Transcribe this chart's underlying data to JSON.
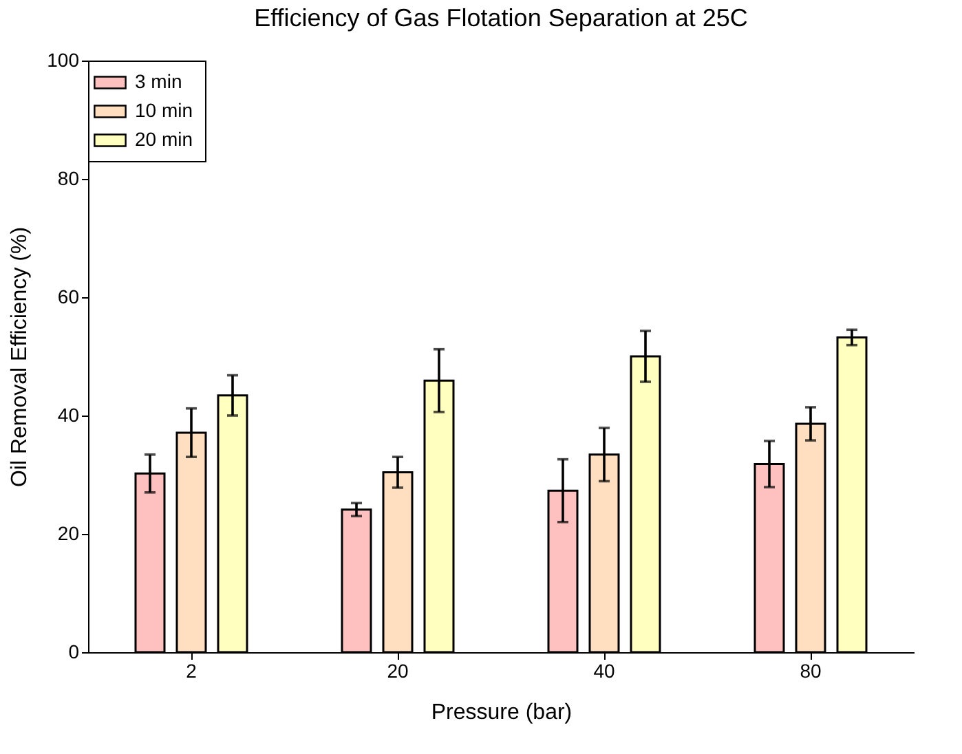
{
  "chart_data": {
    "type": "bar",
    "title": "Efficiency of Gas Flotation Separation at 25C",
    "xlabel": "Pressure (bar)",
    "ylabel": "Oil Removal Efficiency (%)",
    "categories": [
      "2",
      "20",
      "40",
      "80"
    ],
    "series": [
      {
        "name": "3 min",
        "color": "#ffc0c0",
        "values": [
          30.2,
          24.1,
          27.3,
          31.8
        ],
        "errors": [
          3.2,
          1.1,
          5.3,
          3.9
        ]
      },
      {
        "name": "10 min",
        "color": "#ffdfc0",
        "values": [
          37.1,
          30.4,
          33.4,
          38.6
        ],
        "errors": [
          4.1,
          2.6,
          4.5,
          2.8
        ]
      },
      {
        "name": "20 min",
        "color": "#ffffc0",
        "values": [
          43.4,
          45.9,
          50.0,
          53.2
        ],
        "errors": [
          3.4,
          5.3,
          4.3,
          1.3
        ]
      }
    ],
    "ylim": [
      0,
      100
    ],
    "yticks": [
      0,
      20,
      40,
      60,
      80,
      100
    ],
    "grid": false,
    "legend": "top left"
  }
}
